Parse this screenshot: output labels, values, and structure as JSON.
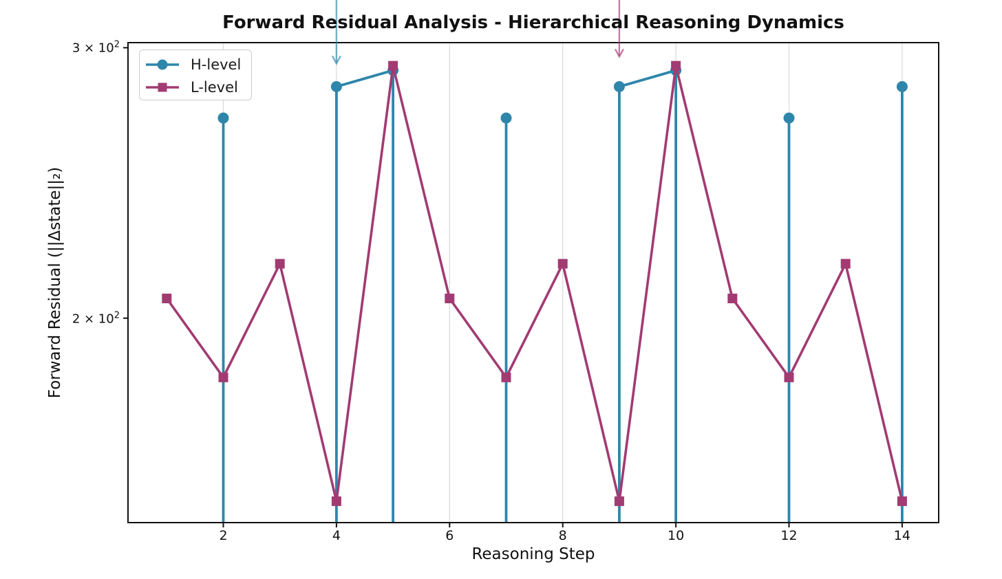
{
  "title": "Forward Residual Analysis - Hierarchical Reasoning Dynamics",
  "axes": {
    "x_label": "Reasoning Step",
    "y_label": "Forward Residual (||Δstate||₂)",
    "x_ticks": [
      2,
      4,
      6,
      8,
      10,
      12,
      14
    ],
    "y_ticks": [
      {
        "coeff": "3 × 10",
        "exp": "2",
        "value": 300
      },
      {
        "coeff": "2 × 10",
        "exp": "2",
        "value": 200
      }
    ]
  },
  "legend": {
    "position": "upper-left",
    "items": [
      {
        "label": "H-level",
        "color": "#2E86AB",
        "marker": "circle"
      },
      {
        "label": "L-level",
        "color": "#A23B72",
        "marker": "square"
      }
    ]
  },
  "chart_data": {
    "type": "line",
    "title": "Forward Residual Analysis - Hierarchical Reasoning Dynamics",
    "xlabel": "Reasoning Step",
    "ylabel": "Forward Residual (||Δstate||₂)",
    "yscale": "log",
    "xlim": [
      0.315,
      14.646
    ],
    "ylim": [
      147,
      302
    ],
    "x_ticks": [
      2,
      4,
      6,
      8,
      10,
      12,
      14
    ],
    "y_tick_values": [
      300,
      200
    ],
    "grid": "vertical-at-x-ticks",
    "x": [
      1,
      2,
      3,
      4,
      5,
      6,
      7,
      8,
      9,
      10,
      11,
      12,
      13,
      14
    ],
    "series": [
      {
        "name": "H-level",
        "color": "#2E86AB",
        "marker": "circle",
        "values": [
          null,
          270,
          null,
          283,
          290,
          null,
          270,
          null,
          283,
          290,
          null,
          270,
          null,
          283
        ],
        "values_note": "null = value below visible y-range; connecting segments appear as vertical stems clipped at the plot bottom"
      },
      {
        "name": "L-level",
        "color": "#A23B72",
        "marker": "square",
        "values": [
          206,
          183,
          217,
          152,
          292,
          206,
          183,
          217,
          152,
          292,
          206,
          183,
          217,
          152
        ]
      }
    ],
    "annotations": [
      {
        "id": "h-spike-arrow",
        "color": "#2E86AB",
        "alpha": 0.65,
        "x_step": 4,
        "tip_value": 293,
        "from": "figure-top",
        "text": ""
      },
      {
        "id": "l-spike-arrow",
        "color": "#A23B72",
        "alpha": 0.65,
        "x_step": 9,
        "tip_value": 296,
        "from": "figure-top",
        "text": ""
      }
    ]
  }
}
